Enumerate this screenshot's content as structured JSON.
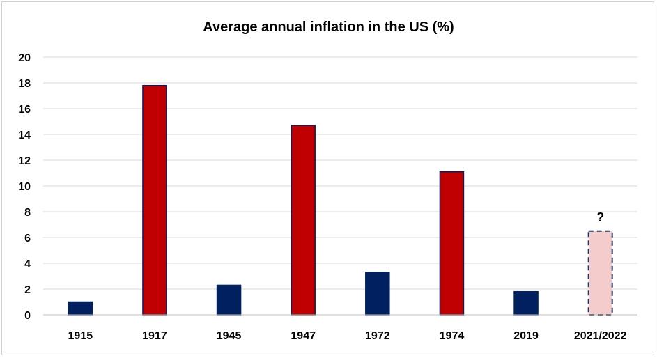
{
  "chart_data": {
    "type": "bar",
    "title": "Average annual inflation in the US (%)",
    "xlabel": "",
    "ylabel": "",
    "ylim": [
      0,
      20
    ],
    "yticks": [
      "0",
      "2",
      "4",
      "6",
      "8",
      "10",
      "12",
      "14",
      "16",
      "18",
      "20"
    ],
    "categories": [
      "1915",
      "1917",
      "1945",
      "1947",
      "1972",
      "1974",
      "2019",
      "2021/2022"
    ],
    "values": [
      1.0,
      17.8,
      2.3,
      14.7,
      3.3,
      11.1,
      1.8,
      6.5
    ],
    "bar_styles": [
      "navy",
      "red",
      "navy",
      "red",
      "navy",
      "red",
      "navy",
      "dashed-pink"
    ],
    "annotations": [
      {
        "category": "2021/2022",
        "text": "?"
      }
    ],
    "colors": {
      "navy": "#002060",
      "red": "#C00000",
      "pink_fill": "#F4CCCC",
      "dashed_border": "#1F3864",
      "grid": "#d9d9d9"
    },
    "grid": true,
    "legend": "none"
  }
}
